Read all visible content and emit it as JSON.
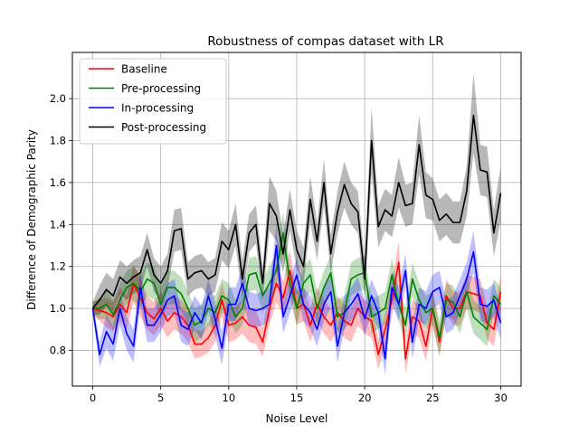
{
  "chart_data": {
    "type": "line",
    "title": "Robustness of compas dataset with LR",
    "xlabel": "Noise Level",
    "ylabel": "Difference of Demographic Parity",
    "xlim": [
      -1.5,
      31.5
    ],
    "ylim": [
      0.63,
      2.22
    ],
    "xticks": [
      0,
      5,
      10,
      15,
      20,
      25,
      30
    ],
    "yticks": [
      0.8,
      1.0,
      1.2,
      1.4,
      1.6,
      1.8,
      2.0
    ],
    "xtick_labels": [
      "0",
      "5",
      "10",
      "15",
      "20",
      "25",
      "30"
    ],
    "ytick_labels": [
      "0.8",
      "1.0",
      "1.2",
      "1.4",
      "1.6",
      "1.8",
      "2.0"
    ],
    "grid": true,
    "legend_position": "upper-left",
    "x": [
      0,
      0.5,
      1,
      1.5,
      2,
      2.5,
      3,
      3.5,
      4,
      4.5,
      5,
      5.5,
      6,
      6.5,
      7,
      7.5,
      8,
      8.5,
      9,
      9.5,
      10,
      10.5,
      11,
      11.5,
      12,
      12.5,
      13,
      13.5,
      14,
      14.5,
      15,
      15.5,
      16,
      16.5,
      17,
      17.5,
      18,
      18.5,
      19,
      19.5,
      20,
      20.5,
      21,
      21.5,
      22,
      22.5,
      23,
      23.5,
      24,
      24.5,
      25,
      25.5,
      26,
      26.5,
      27,
      27.5,
      28,
      28.5,
      29,
      29.5,
      30
    ],
    "series": [
      {
        "name": "Baseline",
        "color": "#ff0000",
        "band_opacity": 0.25,
        "values": [
          1.0,
          0.99,
          0.98,
          0.96,
          1.02,
          0.98,
          1.12,
          1.05,
          0.98,
          0.95,
          1.0,
          0.94,
          0.98,
          0.96,
          0.92,
          0.83,
          0.83,
          0.86,
          0.92,
          1.04,
          0.92,
          0.93,
          0.96,
          0.92,
          0.91,
          0.84,
          1.0,
          1.12,
          1.05,
          1.18,
          1.0,
          1.02,
          0.92,
          1.02,
          0.96,
          0.92,
          0.98,
          0.94,
          0.92,
          1.0,
          0.96,
          0.94,
          0.78,
          0.9,
          1.04,
          1.22,
          0.76,
          0.96,
          0.94,
          0.82,
          1.0,
          0.84,
          1.06,
          1.0,
          1.0,
          1.08,
          1.07,
          1.06,
          0.93,
          0.9,
          1.08
        ],
        "lower": [
          0.97,
          0.94,
          0.91,
          0.89,
          0.94,
          0.9,
          1.03,
          0.96,
          0.9,
          0.87,
          0.92,
          0.86,
          0.9,
          0.88,
          0.84,
          0.76,
          0.77,
          0.79,
          0.84,
          0.96,
          0.84,
          0.85,
          0.88,
          0.84,
          0.83,
          0.77,
          0.92,
          1.03,
          0.97,
          1.08,
          0.92,
          0.94,
          0.84,
          0.94,
          0.88,
          0.84,
          0.9,
          0.86,
          0.84,
          0.92,
          0.88,
          0.86,
          0.71,
          0.82,
          0.96,
          1.12,
          0.69,
          0.88,
          0.86,
          0.75,
          0.92,
          0.77,
          0.98,
          0.92,
          0.92,
          1.0,
          0.99,
          0.98,
          0.85,
          0.82,
          1.0
        ],
        "upper": [
          1.03,
          1.04,
          1.05,
          1.03,
          1.1,
          1.06,
          1.21,
          1.14,
          1.06,
          1.03,
          1.08,
          1.02,
          1.06,
          1.04,
          1.0,
          0.9,
          0.89,
          0.93,
          1.0,
          1.12,
          1.0,
          1.01,
          1.04,
          1.0,
          0.99,
          0.91,
          1.08,
          1.21,
          1.13,
          1.28,
          1.08,
          1.1,
          1.0,
          1.1,
          1.04,
          1.0,
          1.06,
          1.02,
          1.0,
          1.08,
          1.04,
          1.02,
          0.85,
          0.98,
          1.12,
          1.32,
          0.83,
          1.04,
          1.02,
          0.89,
          1.08,
          0.91,
          1.14,
          1.08,
          1.08,
          1.16,
          1.15,
          1.14,
          1.01,
          0.98,
          1.16
        ]
      },
      {
        "name": "Pre-processing",
        "color": "#008000",
        "band_opacity": 0.25,
        "values": [
          1.0,
          1.0,
          1.02,
          0.97,
          1.04,
          1.1,
          1.12,
          1.08,
          1.14,
          1.12,
          1.02,
          1.1,
          1.1,
          1.07,
          1.0,
          0.92,
          0.94,
          1.0,
          0.98,
          1.06,
          1.04,
          0.96,
          1.0,
          1.16,
          1.17,
          1.06,
          1.12,
          1.18,
          1.36,
          1.12,
          1.0,
          1.12,
          1.16,
          1.0,
          1.1,
          1.17,
          0.96,
          0.98,
          1.14,
          1.16,
          1.17,
          0.96,
          0.98,
          1.0,
          1.16,
          1.02,
          0.92,
          1.14,
          1.04,
          0.98,
          1.0,
          0.86,
          1.04,
          1.03,
          0.96,
          1.08,
          0.96,
          0.93,
          0.9,
          1.06,
          1.02
        ],
        "lower": [
          0.97,
          0.95,
          0.95,
          0.9,
          0.96,
          1.02,
          1.04,
          1.0,
          1.06,
          1.04,
          0.94,
          1.02,
          1.02,
          0.99,
          0.92,
          0.84,
          0.86,
          0.92,
          0.9,
          0.98,
          0.96,
          0.88,
          0.92,
          1.08,
          1.09,
          0.98,
          1.04,
          1.1,
          1.26,
          1.04,
          0.92,
          1.04,
          1.08,
          0.92,
          1.02,
          1.09,
          0.88,
          0.9,
          1.06,
          1.08,
          1.09,
          0.88,
          0.9,
          0.92,
          1.08,
          0.94,
          0.84,
          1.06,
          0.96,
          0.9,
          0.92,
          0.78,
          0.96,
          0.95,
          0.88,
          1.0,
          0.88,
          0.85,
          0.82,
          0.98,
          0.94
        ],
        "upper": [
          1.03,
          1.05,
          1.09,
          1.04,
          1.12,
          1.18,
          1.2,
          1.16,
          1.22,
          1.2,
          1.1,
          1.18,
          1.18,
          1.15,
          1.08,
          1.0,
          1.02,
          1.08,
          1.06,
          1.14,
          1.12,
          1.04,
          1.08,
          1.24,
          1.25,
          1.14,
          1.2,
          1.26,
          1.46,
          1.2,
          1.08,
          1.2,
          1.24,
          1.08,
          1.18,
          1.25,
          1.04,
          1.06,
          1.22,
          1.24,
          1.25,
          1.04,
          1.06,
          1.08,
          1.24,
          1.1,
          1.0,
          1.22,
          1.12,
          1.06,
          1.08,
          0.94,
          1.12,
          1.11,
          1.04,
          1.16,
          1.04,
          1.01,
          0.98,
          1.14,
          1.1
        ]
      },
      {
        "name": "In-processing",
        "color": "#0000ff",
        "band_opacity": 0.25,
        "values": [
          1.0,
          0.78,
          0.89,
          0.83,
          1.0,
          0.88,
          0.82,
          1.1,
          0.92,
          0.92,
          0.97,
          1.04,
          1.06,
          0.92,
          0.9,
          0.98,
          0.93,
          1.06,
          0.95,
          0.81,
          1.02,
          1.02,
          1.12,
          1.0,
          0.99,
          1.0,
          1.02,
          1.3,
          0.96,
          1.06,
          1.16,
          1.02,
          0.98,
          0.9,
          1.02,
          1.08,
          0.82,
          0.98,
          1.02,
          1.07,
          0.95,
          1.06,
          0.98,
          0.76,
          1.1,
          1.02,
          1.18,
          0.84,
          1.02,
          1.0,
          1.08,
          1.1,
          0.96,
          0.98,
          1.06,
          1.14,
          1.27,
          1.02,
          1.01,
          1.04,
          0.93
        ],
        "lower": [
          0.97,
          0.72,
          0.81,
          0.75,
          0.92,
          0.8,
          0.74,
          1.02,
          0.84,
          0.84,
          0.89,
          0.96,
          0.98,
          0.84,
          0.82,
          0.9,
          0.85,
          0.98,
          0.87,
          0.73,
          0.94,
          0.94,
          1.04,
          0.92,
          0.91,
          0.92,
          0.94,
          1.2,
          0.88,
          0.98,
          1.08,
          0.94,
          0.9,
          0.82,
          0.94,
          1.0,
          0.74,
          0.9,
          0.94,
          0.99,
          0.87,
          0.98,
          0.9,
          0.68,
          1.02,
          0.94,
          1.1,
          0.76,
          0.94,
          0.92,
          1.0,
          1.02,
          0.88,
          0.9,
          0.98,
          1.06,
          1.17,
          0.94,
          0.93,
          0.96,
          0.85
        ],
        "upper": [
          1.03,
          0.84,
          0.97,
          0.91,
          1.08,
          0.96,
          0.9,
          1.18,
          1.0,
          1.0,
          1.05,
          1.12,
          1.14,
          1.0,
          0.98,
          1.06,
          1.01,
          1.14,
          1.03,
          0.89,
          1.1,
          1.1,
          1.2,
          1.08,
          1.07,
          1.08,
          1.1,
          1.4,
          1.04,
          1.14,
          1.24,
          1.1,
          1.06,
          0.98,
          1.1,
          1.16,
          0.9,
          1.06,
          1.1,
          1.15,
          1.03,
          1.14,
          1.06,
          0.84,
          1.18,
          1.1,
          1.26,
          0.92,
          1.1,
          1.08,
          1.16,
          1.18,
          1.04,
          1.06,
          1.14,
          1.22,
          1.37,
          1.1,
          1.09,
          1.12,
          1.01
        ]
      },
      {
        "name": "Post-processing",
        "color": "#000000",
        "band_opacity": 0.28,
        "values": [
          1.0,
          1.04,
          1.09,
          1.06,
          1.15,
          1.12,
          1.15,
          1.17,
          1.28,
          1.16,
          1.12,
          1.18,
          1.37,
          1.38,
          1.14,
          1.17,
          1.18,
          1.14,
          1.16,
          1.32,
          1.28,
          1.4,
          1.14,
          1.36,
          1.4,
          1.12,
          1.5,
          1.44,
          1.26,
          1.47,
          1.28,
          1.2,
          1.52,
          1.32,
          1.6,
          1.26,
          1.46,
          1.59,
          1.5,
          1.46,
          1.14,
          1.8,
          1.39,
          1.47,
          1.44,
          1.6,
          1.49,
          1.5,
          1.78,
          1.54,
          1.52,
          1.42,
          1.45,
          1.41,
          1.41,
          1.56,
          1.92,
          1.66,
          1.65,
          1.36,
          1.55
        ],
        "lower": [
          0.97,
          0.97,
          1.01,
          0.98,
          1.07,
          1.04,
          1.07,
          1.09,
          1.2,
          1.08,
          1.04,
          1.1,
          1.27,
          1.28,
          1.06,
          1.09,
          1.1,
          1.06,
          1.08,
          1.23,
          1.19,
          1.3,
          1.05,
          1.27,
          1.31,
          1.04,
          1.37,
          1.32,
          1.17,
          1.37,
          1.19,
          1.11,
          1.41,
          1.23,
          1.49,
          1.17,
          1.36,
          1.48,
          1.4,
          1.36,
          1.05,
          1.64,
          1.29,
          1.37,
          1.34,
          1.48,
          1.39,
          1.4,
          1.64,
          1.43,
          1.42,
          1.32,
          1.35,
          1.31,
          1.31,
          1.44,
          1.74,
          1.54,
          1.53,
          1.25,
          1.42
        ],
        "upper": [
          1.03,
          1.11,
          1.17,
          1.14,
          1.23,
          1.2,
          1.23,
          1.25,
          1.36,
          1.24,
          1.2,
          1.26,
          1.47,
          1.48,
          1.22,
          1.25,
          1.26,
          1.22,
          1.24,
          1.41,
          1.37,
          1.5,
          1.23,
          1.45,
          1.49,
          1.2,
          1.63,
          1.56,
          1.35,
          1.57,
          1.37,
          1.29,
          1.63,
          1.41,
          1.71,
          1.35,
          1.56,
          1.7,
          1.6,
          1.56,
          1.23,
          1.96,
          1.49,
          1.57,
          1.54,
          1.72,
          1.59,
          1.6,
          1.92,
          1.65,
          1.62,
          1.52,
          1.55,
          1.51,
          1.51,
          1.68,
          2.12,
          1.78,
          1.77,
          1.47,
          1.68
        ]
      }
    ]
  }
}
